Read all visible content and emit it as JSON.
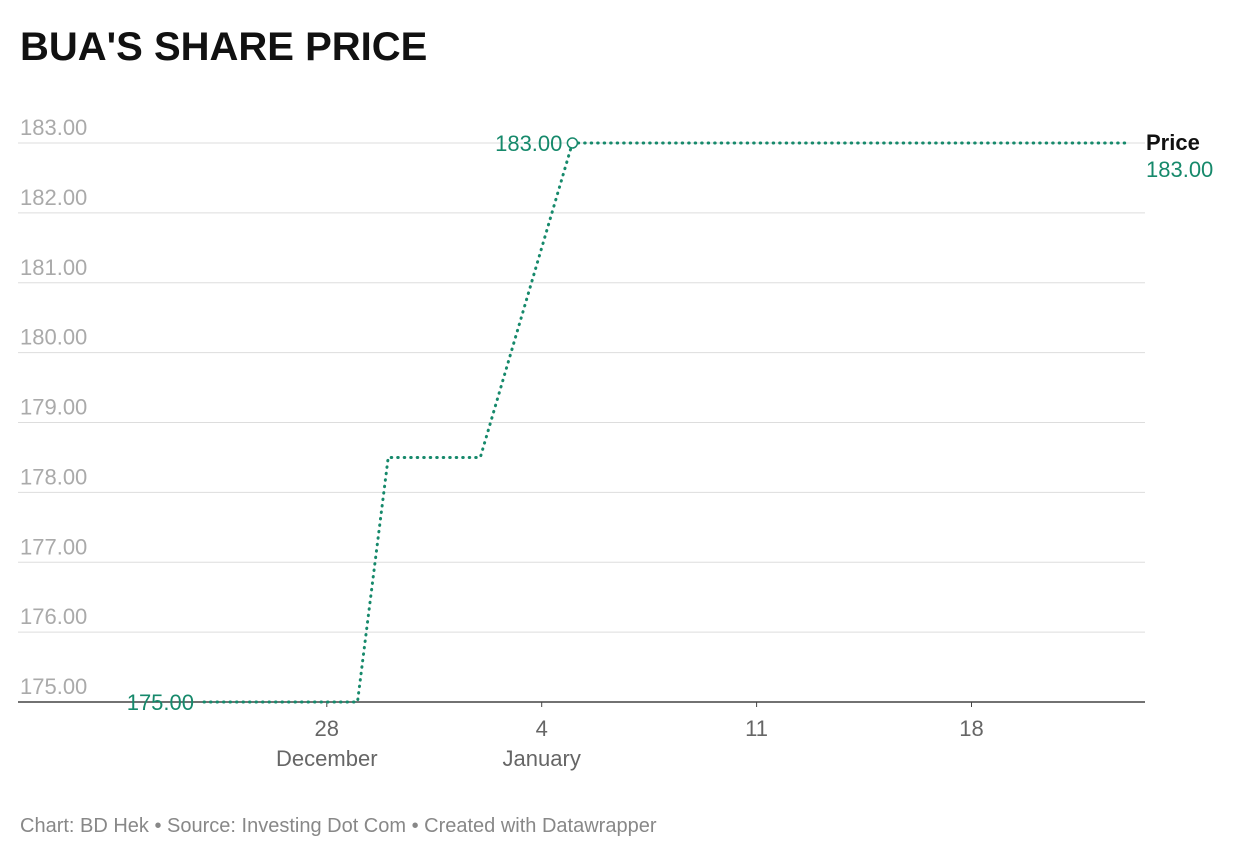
{
  "chart_data": {
    "type": "line",
    "title": "BUA'S SHARE PRICE",
    "x": [
      "12-24",
      "12-29",
      "12-30",
      "01-02",
      "01-05",
      "01-23"
    ],
    "series": [
      {
        "name": "Price",
        "color": "#16896b",
        "values": [
          175,
          175,
          178.5,
          178.5,
          183,
          183
        ],
        "value_labels": [
          "175.00",
          null,
          null,
          null,
          "183.00",
          "183.00"
        ]
      }
    ],
    "xlim": [
      "12-24",
      "01-23"
    ],
    "xticks": [
      {
        "value": "12-28",
        "label": "28"
      },
      {
        "value": "01-04",
        "label": "4"
      },
      {
        "value": "01-11",
        "label": "11"
      },
      {
        "value": "01-18",
        "label": "18"
      }
    ],
    "xtick_months": [
      {
        "value": "12-28",
        "label": "December"
      },
      {
        "value": "01-04",
        "label": "January"
      }
    ],
    "ylim": [
      175,
      183
    ],
    "yticks": [
      {
        "value": 175,
        "label": "175.00"
      },
      {
        "value": 176,
        "label": "176.00"
      },
      {
        "value": 177,
        "label": "177.00"
      },
      {
        "value": 178,
        "label": "178.00"
      },
      {
        "value": 179,
        "label": "179.00"
      },
      {
        "value": 180,
        "label": "180.00"
      },
      {
        "value": 181,
        "label": "181.00"
      },
      {
        "value": 182,
        "label": "182.00"
      },
      {
        "value": 183,
        "label": "183.00"
      }
    ],
    "grid": true,
    "source": "Chart: BD Hek • Source: Investing Dot Com • Created with Datawrapper"
  }
}
